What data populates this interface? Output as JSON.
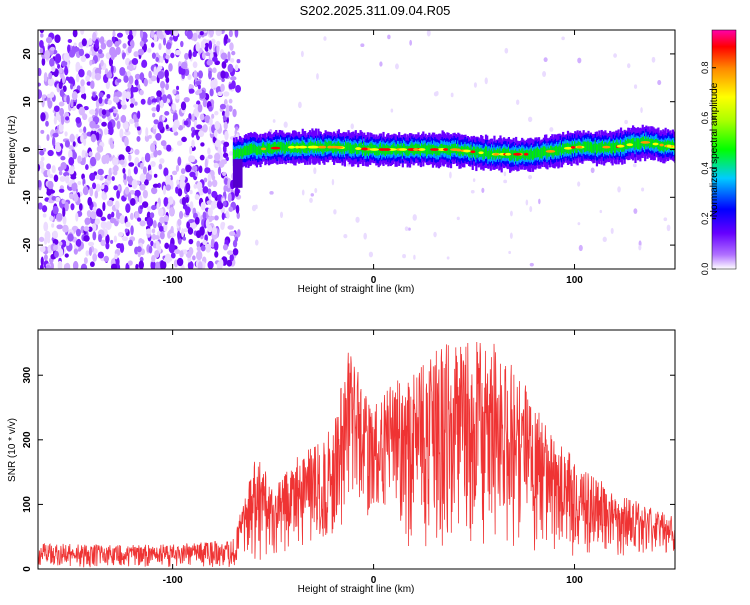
{
  "title": "S202.2025.311.09.04.R05",
  "chart_data": [
    {
      "type": "heatmap",
      "title": "S202.2025.311.09.04.R05",
      "xlabel": "Height of straight line (km)",
      "ylabel": "Frequency (Hz)",
      "xlim": [
        -167,
        150
      ],
      "ylim": [
        -25,
        25
      ],
      "xticks": [
        -100,
        0,
        100
      ],
      "yticks": [
        -20,
        -10,
        0,
        10,
        20
      ],
      "noise_region": [
        -167,
        -70
      ],
      "signal_region": [
        -70,
        150
      ],
      "signal_freq_track": [
        {
          "x": -70,
          "y": -1.0
        },
        {
          "x": -60,
          "y": 0.0
        },
        {
          "x": -40,
          "y": 0.5
        },
        {
          "x": -20,
          "y": 0.5
        },
        {
          "x": 0,
          "y": 0.0
        },
        {
          "x": 20,
          "y": 0.0
        },
        {
          "x": 40,
          "y": 0.0
        },
        {
          "x": 60,
          "y": -1.0
        },
        {
          "x": 80,
          "y": -1.0
        },
        {
          "x": 100,
          "y": 0.5
        },
        {
          "x": 120,
          "y": 0.5
        },
        {
          "x": 135,
          "y": 1.5
        },
        {
          "x": 150,
          "y": 0.5
        }
      ],
      "colorbar": {
        "label": "Normalized spectral amplitude",
        "range": [
          0,
          0.95
        ],
        "ticks": [
          "0.0",
          "0.2",
          "0.4",
          "0.6",
          "0.8"
        ]
      },
      "grid": false
    },
    {
      "type": "line",
      "xlabel": "Height of straight line (km)",
      "ylabel": "SNR (10 * v/v)",
      "xlim": [
        -167,
        150
      ],
      "ylim": [
        0,
        370
      ],
      "xticks": [
        -100,
        0,
        100
      ],
      "yticks": [
        0,
        100,
        200,
        300
      ],
      "color": "#ef3333",
      "envelope": [
        {
          "x": -167,
          "lo": 2,
          "hi": 40
        },
        {
          "x": -140,
          "lo": 2,
          "hi": 38
        },
        {
          "x": -100,
          "lo": 2,
          "hi": 38
        },
        {
          "x": -70,
          "lo": 2,
          "hi": 45
        },
        {
          "x": -58,
          "lo": 5,
          "hi": 185
        },
        {
          "x": -50,
          "lo": 15,
          "hi": 120
        },
        {
          "x": -40,
          "lo": 25,
          "hi": 170
        },
        {
          "x": -30,
          "lo": 40,
          "hi": 190
        },
        {
          "x": -20,
          "lo": 50,
          "hi": 220
        },
        {
          "x": -12,
          "lo": 60,
          "hi": 350
        },
        {
          "x": 0,
          "lo": 80,
          "hi": 250
        },
        {
          "x": 10,
          "lo": 100,
          "hi": 290
        },
        {
          "x": 18,
          "lo": 5,
          "hi": 300
        },
        {
          "x": 30,
          "lo": 10,
          "hi": 340
        },
        {
          "x": 45,
          "lo": 20,
          "hi": 360
        },
        {
          "x": 60,
          "lo": 20,
          "hi": 355
        },
        {
          "x": 70,
          "lo": 15,
          "hi": 320
        },
        {
          "x": 85,
          "lo": 8,
          "hi": 230
        },
        {
          "x": 100,
          "lo": 10,
          "hi": 170
        },
        {
          "x": 120,
          "lo": 20,
          "hi": 120
        },
        {
          "x": 150,
          "lo": 20,
          "hi": 80
        }
      ],
      "grid": false
    }
  ]
}
